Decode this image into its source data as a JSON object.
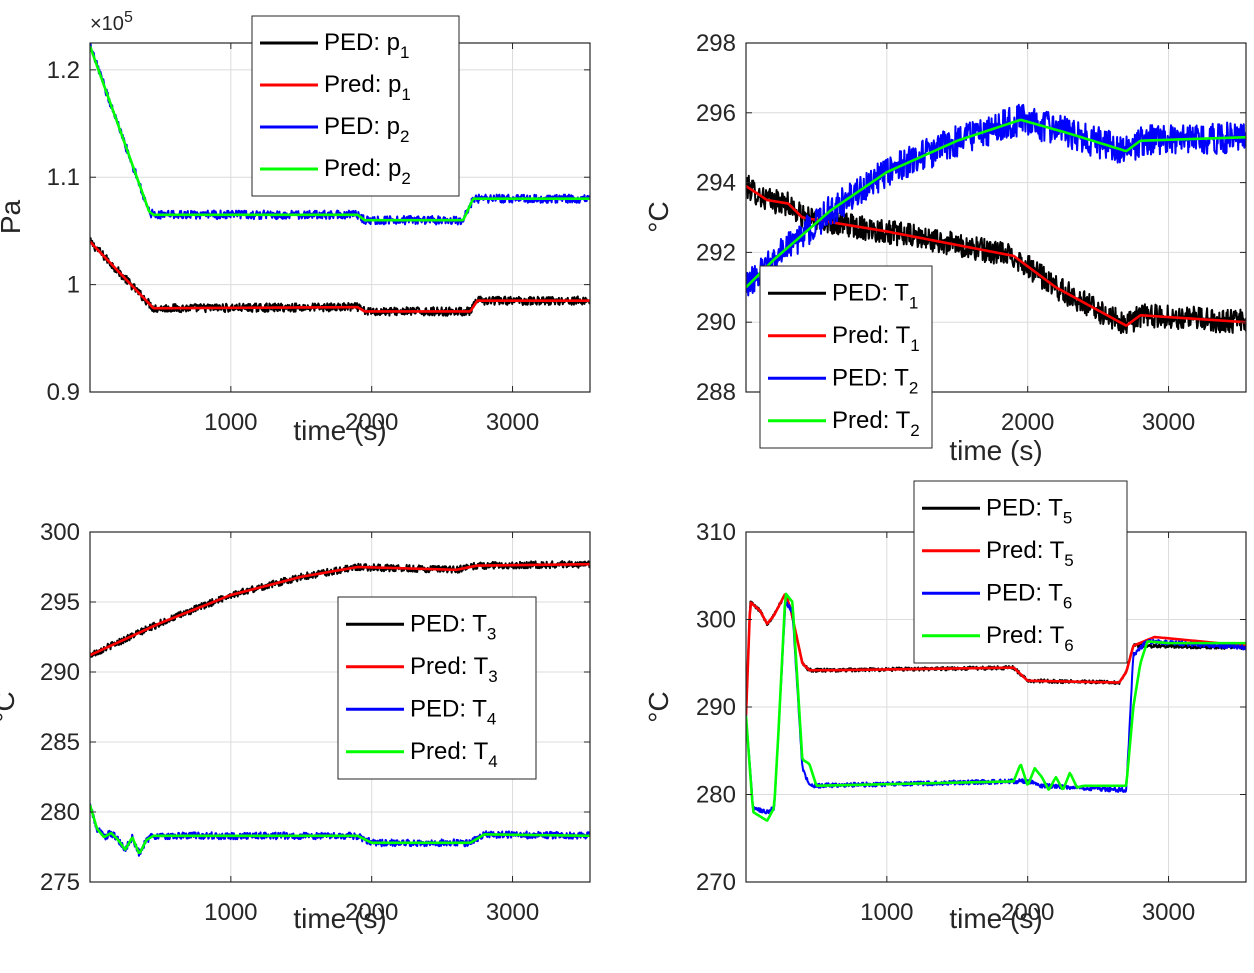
{
  "chart_data": [
    {
      "type": "line",
      "xlabel": "time (s)",
      "ylabel": "Pa",
      "xlim": [
        0,
        3550
      ],
      "ylim": [
        0.9,
        1.225
      ],
      "xticks": [
        "1000",
        "2000",
        "3000"
      ],
      "yticks": [
        "0.9",
        "1",
        "1.1",
        "1.2"
      ],
      "ytick_values": [
        0.9,
        1.0,
        1.1,
        1.2
      ],
      "exponent_label": "×10",
      "exponent_power": "5",
      "grid": true,
      "legend_position": "top-center",
      "series": [
        {
          "legend_main": "PED: p",
          "legend_sub": "1",
          "color": "#000000",
          "noise": 0.004,
          "x": [
            0,
            400,
            450,
            1900,
            1950,
            2700,
            2750,
            3550
          ],
          "y": [
            1.04,
            0.985,
            0.978,
            0.979,
            0.975,
            0.975,
            0.985,
            0.985
          ]
        },
        {
          "legend_main": "Pred: p",
          "legend_sub": "1",
          "color": "#ff0000",
          "noise": 0,
          "x": [
            0,
            400,
            450,
            1900,
            1950,
            2700,
            2750,
            3550
          ],
          "y": [
            1.04,
            0.985,
            0.978,
            0.979,
            0.975,
            0.975,
            0.985,
            0.985
          ]
        },
        {
          "legend_main": "PED: p",
          "legend_sub": "2",
          "color": "#0000ff",
          "noise": 0.004,
          "x": [
            0,
            420,
            450,
            1900,
            1950,
            2650,
            2720,
            3550
          ],
          "y": [
            1.222,
            1.068,
            1.065,
            1.065,
            1.06,
            1.06,
            1.08,
            1.08
          ]
        },
        {
          "legend_main": "Pred: p",
          "legend_sub": "2",
          "color": "#00ff00",
          "noise": 0,
          "x": [
            0,
            420,
            450,
            1900,
            1950,
            2650,
            2720,
            3550
          ],
          "y": [
            1.222,
            1.068,
            1.065,
            1.065,
            1.06,
            1.06,
            1.08,
            1.08
          ]
        }
      ]
    },
    {
      "type": "line",
      "xlabel": "time (s)",
      "ylabel": "°C",
      "xlim": [
        0,
        3550
      ],
      "ylim": [
        288,
        298
      ],
      "xticks": [
        "1000",
        "2000",
        "3000"
      ],
      "yticks": [
        "288",
        "290",
        "292",
        "294",
        "296",
        "298"
      ],
      "ytick_values": [
        288,
        290,
        292,
        294,
        296,
        298
      ],
      "grid": true,
      "legend_position": "bottom-left",
      "series": [
        {
          "legend_main": "PED: T",
          "legend_sub": "1",
          "color": "#000000",
          "noise": 0.35,
          "x": [
            0,
            150,
            300,
            400,
            1000,
            1900,
            2200,
            2700,
            2800,
            3550
          ],
          "y": [
            293.9,
            293.5,
            293.4,
            293.0,
            292.6,
            291.9,
            291.0,
            289.9,
            290.2,
            290.0
          ]
        },
        {
          "legend_main": "Pred: T",
          "legend_sub": "1",
          "color": "#ff0000",
          "noise": 0,
          "x": [
            0,
            150,
            300,
            400,
            1000,
            1900,
            2200,
            2700,
            2800,
            3550
          ],
          "y": [
            293.9,
            293.5,
            293.4,
            293.0,
            292.6,
            291.9,
            291.0,
            289.9,
            290.2,
            290.0
          ]
        },
        {
          "legend_main": "PED: T",
          "legend_sub": "2",
          "color": "#0000ff",
          "noise": 0.45,
          "x": [
            0,
            200,
            600,
            1000,
            1500,
            1950,
            2300,
            2700,
            2800,
            3550
          ],
          "y": [
            291.0,
            291.8,
            293.2,
            294.3,
            295.2,
            295.8,
            295.4,
            294.9,
            295.2,
            295.3
          ]
        },
        {
          "legend_main": "Pred: T",
          "legend_sub": "2",
          "color": "#00ff00",
          "noise": 0,
          "x": [
            0,
            200,
            600,
            1000,
            1500,
            1950,
            2300,
            2700,
            2800,
            3550
          ],
          "y": [
            291.0,
            291.8,
            293.2,
            294.3,
            295.2,
            295.8,
            295.4,
            294.9,
            295.2,
            295.3
          ]
        }
      ]
    },
    {
      "type": "line",
      "xlabel": "time (s)",
      "ylabel": "°C",
      "xlim": [
        0,
        3550
      ],
      "ylim": [
        275,
        300
      ],
      "xticks": [
        "1000",
        "2000",
        "3000"
      ],
      "yticks": [
        "275",
        "280",
        "285",
        "290",
        "295",
        "300"
      ],
      "ytick_values": [
        275,
        280,
        285,
        290,
        295,
        300
      ],
      "grid": true,
      "legend_position": "right",
      "series": [
        {
          "legend_main": "PED: T",
          "legend_sub": "3",
          "color": "#000000",
          "noise": 0.25,
          "x": [
            0,
            500,
            1000,
            1500,
            1900,
            2600,
            2750,
            3550
          ],
          "y": [
            291.2,
            293.5,
            295.5,
            296.8,
            297.5,
            297.3,
            297.6,
            297.7
          ]
        },
        {
          "legend_main": "Pred: T",
          "legend_sub": "3",
          "color": "#ff0000",
          "noise": 0,
          "x": [
            0,
            500,
            1000,
            1500,
            1900,
            2600,
            2750,
            3550
          ],
          "y": [
            291.2,
            293.5,
            295.5,
            296.8,
            297.5,
            297.3,
            297.6,
            297.7
          ]
        },
        {
          "legend_main": "PED: T",
          "legend_sub": "4",
          "color": "#0000ff",
          "noise": 0.25,
          "x": [
            0,
            50,
            100,
            150,
            200,
            250,
            300,
            350,
            400,
            450,
            1900,
            2000,
            2700,
            2800,
            3550
          ],
          "y": [
            280.5,
            278.8,
            278.2,
            278.5,
            278.0,
            277.3,
            278.2,
            277.0,
            278.0,
            278.3,
            278.3,
            277.8,
            277.8,
            278.4,
            278.3
          ]
        },
        {
          "legend_main": "Pred: T",
          "legend_sub": "4",
          "color": "#00ff00",
          "noise": 0,
          "x": [
            0,
            50,
            100,
            150,
            200,
            250,
            300,
            350,
            400,
            450,
            1900,
            2000,
            2700,
            2800,
            3550
          ],
          "y": [
            280.5,
            278.8,
            278.2,
            278.5,
            278.0,
            277.3,
            278.2,
            277.0,
            278.0,
            278.3,
            278.3,
            277.8,
            277.8,
            278.4,
            278.3
          ]
        }
      ]
    },
    {
      "type": "line",
      "xlabel": "time (s)",
      "ylabel": "°C",
      "xlim": [
        0,
        3550
      ],
      "ylim": [
        270,
        310
      ],
      "xticks": [
        "1000",
        "2000",
        "3000"
      ],
      "yticks": [
        "270",
        "280",
        "290",
        "300",
        "310"
      ],
      "ytick_values": [
        270,
        280,
        290,
        300,
        310
      ],
      "grid": true,
      "legend_position": "top-center",
      "series": [
        {
          "legend_main": "PED: T",
          "legend_sub": "5",
          "color": "#000000",
          "noise": 0.2,
          "x": [
            0,
            30,
            100,
            150,
            200,
            280,
            320,
            400,
            450,
            600,
            1900,
            2000,
            2650,
            2700,
            2750,
            3550
          ],
          "y": [
            289,
            302,
            301,
            299.5,
            300.5,
            303,
            301,
            295,
            294.2,
            294.2,
            294.5,
            293.0,
            292.8,
            294,
            297,
            296.8
          ]
        },
        {
          "legend_main": "Pred: T",
          "legend_sub": "5",
          "color": "#ff0000",
          "noise": 0,
          "x": [
            0,
            30,
            100,
            150,
            200,
            280,
            320,
            400,
            450,
            600,
            1900,
            2000,
            2650,
            2700,
            2750,
            2900,
            3550
          ],
          "y": [
            289,
            302,
            301,
            299.5,
            300.5,
            303,
            301,
            295,
            294.2,
            294.2,
            294.5,
            293.0,
            292.8,
            294,
            297,
            298,
            297.0
          ]
        },
        {
          "legend_main": "PED: T",
          "legend_sub": "6",
          "color": "#0000ff",
          "noise": 0.25,
          "x": [
            0,
            50,
            150,
            200,
            230,
            280,
            330,
            400,
            450,
            1900,
            2000,
            2100,
            2700,
            2750,
            2850,
            3550
          ],
          "y": [
            289,
            278.5,
            278,
            278.5,
            287,
            302,
            301,
            283,
            281,
            281.5,
            281.5,
            281,
            280.5,
            296,
            297.5,
            296.8
          ]
        },
        {
          "legend_main": "Pred: T",
          "legend_sub": "6",
          "color": "#00ff00",
          "noise": 0,
          "x": [
            0,
            50,
            150,
            200,
            230,
            280,
            330,
            400,
            450,
            500,
            1900,
            1950,
            2000,
            2050,
            2100,
            2150,
            2200,
            2250,
            2300,
            2350,
            2400,
            2700,
            2750,
            2800,
            2850,
            3000,
            3550
          ],
          "y": [
            289,
            278,
            277,
            278.5,
            287,
            303,
            302,
            284,
            283.5,
            281,
            281.5,
            283.5,
            281,
            283,
            282,
            280.5,
            282,
            280.5,
            282.5,
            280.8,
            281,
            281,
            290,
            295,
            297.5,
            297.3,
            297.3
          ]
        }
      ]
    }
  ]
}
